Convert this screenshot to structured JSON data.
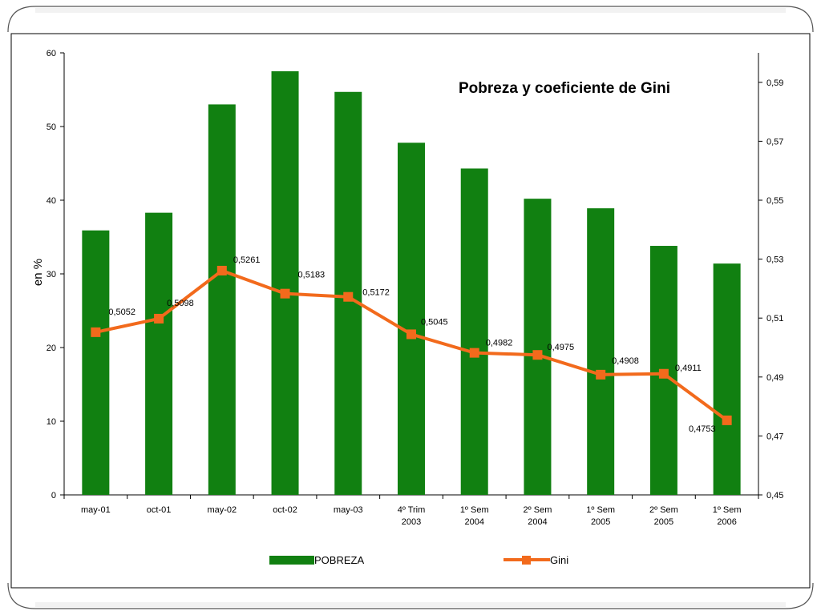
{
  "chart_data": {
    "type": "bar",
    "title": "Pobreza y coeficiente de Gini",
    "ylabel": "en %",
    "ylim": [
      0,
      60
    ],
    "y2lim": [
      0.45,
      0.6
    ],
    "y_ticks": [
      "0",
      "10",
      "20",
      "30",
      "40",
      "50",
      "60"
    ],
    "y2_ticks": [
      "0,45",
      "0,47",
      "0,49",
      "0,51",
      "0,53",
      "0,55",
      "0,57",
      "0,59"
    ],
    "categories": [
      [
        "may-01"
      ],
      [
        "oct-01"
      ],
      [
        "may-02"
      ],
      [
        "oct-02"
      ],
      [
        "may-03"
      ],
      [
        "4º Trim",
        "2003"
      ],
      [
        "1º Sem",
        "2004"
      ],
      [
        "2º Sem",
        "2004"
      ],
      [
        "1º Sem",
        "2005"
      ],
      [
        "2º Sem",
        "2005"
      ],
      [
        "1º Sem",
        "2006"
      ]
    ],
    "series": [
      {
        "name": "POBREZA",
        "type": "bar",
        "axis": "left",
        "color": "#118011",
        "values": [
          35.9,
          38.3,
          53.0,
          57.5,
          54.7,
          47.8,
          44.3,
          40.2,
          38.9,
          33.8,
          31.4
        ]
      },
      {
        "name": "Gini",
        "type": "line",
        "axis": "right",
        "color": "#f26a1c",
        "values": [
          0.5052,
          0.5098,
          0.5261,
          0.5183,
          0.5172,
          0.5045,
          0.4982,
          0.4975,
          0.4908,
          0.4911,
          0.4753
        ],
        "labels": [
          "0,5052",
          "0,5098",
          "0,5261",
          "0,5183",
          "0,5172",
          "0,5045",
          "0,4982",
          "0,4975",
          "0,4908",
          "0,4911",
          "0,4753"
        ]
      }
    ],
    "legend": "bottom"
  }
}
